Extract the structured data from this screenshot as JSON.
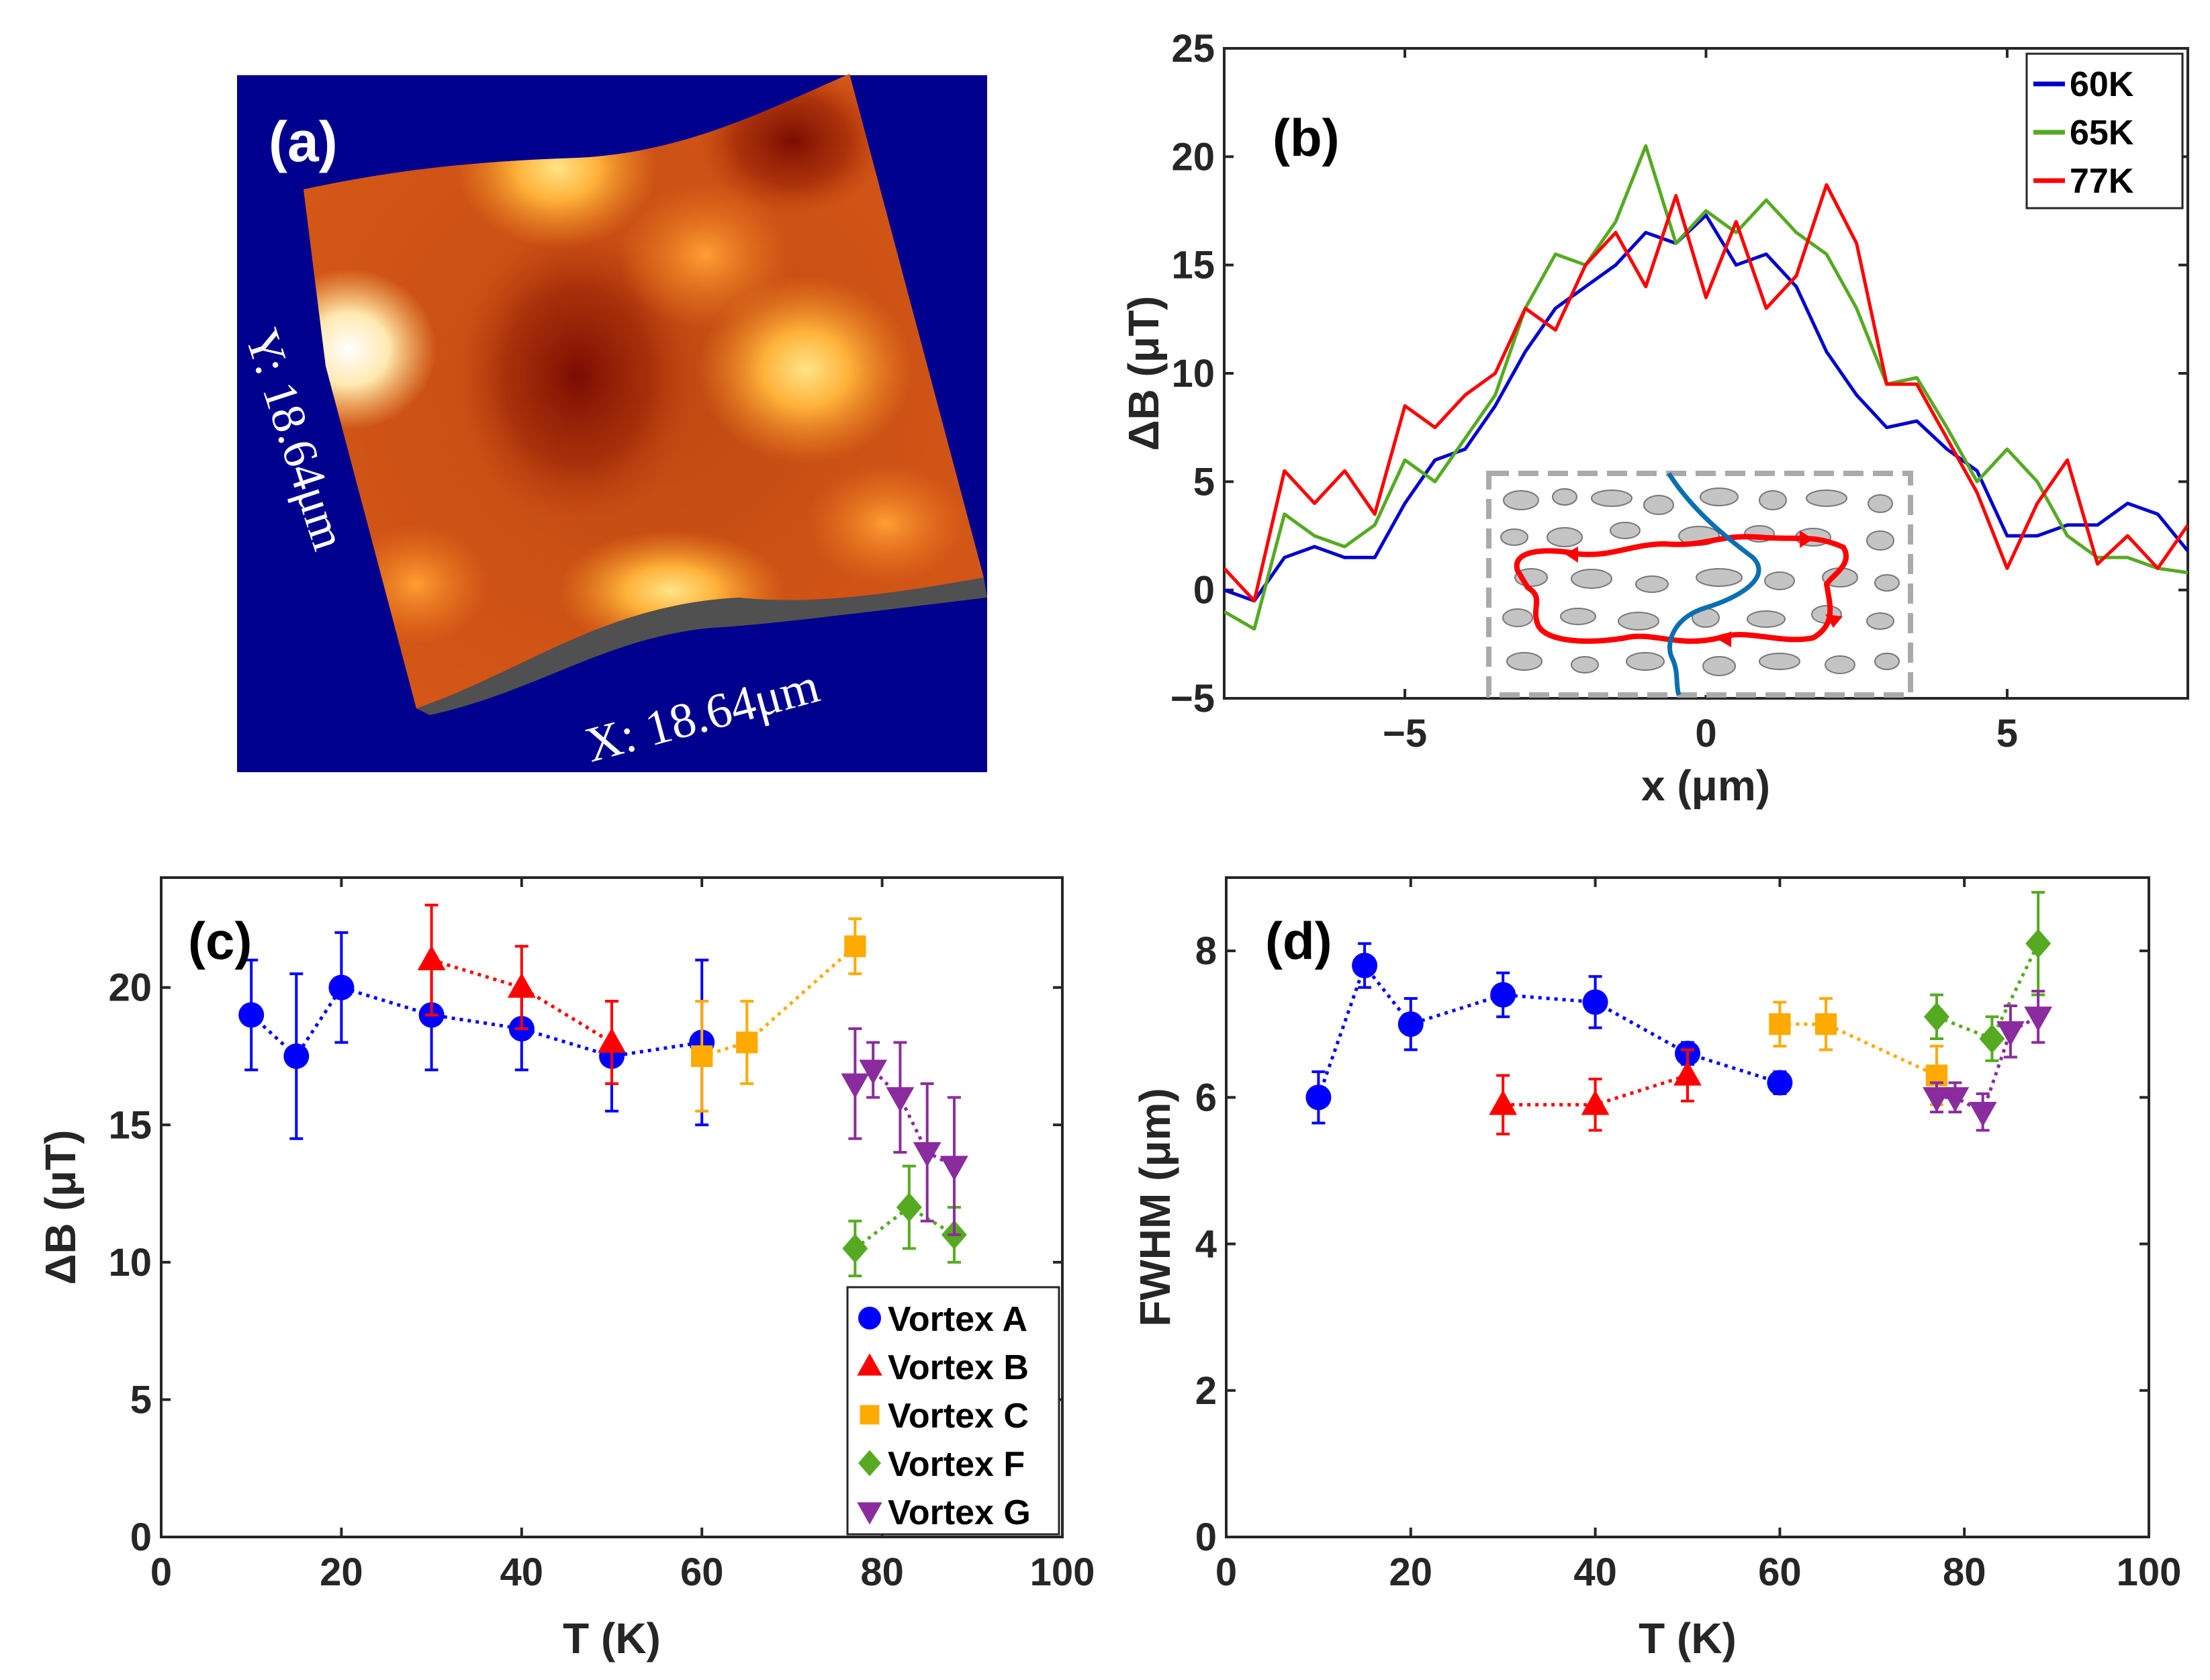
{
  "panel_a": {
    "tag": "(a)",
    "x_label": "X: 18.64μm",
    "y_label": "Y: 18.64μm"
  },
  "chart_data": [
    {
      "type": "line",
      "tag": "(b)",
      "title": "",
      "xlabel": "x (μm)",
      "ylabel": "ΔB (μT)",
      "xlim": [
        -8,
        8
      ],
      "ylim": [
        -5,
        25
      ],
      "xticks": [
        -5,
        0,
        5
      ],
      "yticks": [
        -5,
        0,
        5,
        10,
        15,
        20,
        25
      ],
      "legend": "top-right",
      "series": [
        {
          "name": "60K",
          "color": "#0000cc",
          "x": [
            -8,
            -7.5,
            -7,
            -6.5,
            -6,
            -5.5,
            -5,
            -4.5,
            -4,
            -3.5,
            -3,
            -2.5,
            -2,
            -1.5,
            -1,
            -0.5,
            0,
            0.5,
            1,
            1.5,
            2,
            2.5,
            3,
            3.5,
            4,
            4.5,
            5,
            5.5,
            6,
            6.5,
            7,
            7.5,
            8
          ],
          "y": [
            0,
            -0.5,
            1.5,
            2,
            1.5,
            1.5,
            4,
            6,
            6.5,
            8.5,
            11,
            13,
            14,
            15,
            16.5,
            16,
            17.3,
            15,
            15.5,
            14,
            11,
            9,
            7.5,
            7.8,
            6.5,
            5.5,
            2.5,
            2.5,
            3,
            3,
            4,
            3.5,
            1.8
          ]
        },
        {
          "name": "65K",
          "color": "#55aa22",
          "x": [
            -8,
            -7.5,
            -7,
            -6.5,
            -6,
            -5.5,
            -5,
            -4.5,
            -4,
            -3.5,
            -3,
            -2.5,
            -2,
            -1.5,
            -1,
            -0.5,
            0,
            0.5,
            1,
            1.5,
            2,
            2.5,
            3,
            3.5,
            4,
            4.5,
            5,
            5.5,
            6,
            6.5,
            7,
            7.5,
            8
          ],
          "y": [
            -1,
            -1.8,
            3.5,
            2.5,
            2,
            3,
            6,
            5,
            7,
            9,
            13,
            15.5,
            15,
            17,
            20.5,
            16,
            17.5,
            16.5,
            18,
            16.5,
            15.5,
            13,
            9.5,
            9.8,
            7.5,
            5,
            6.5,
            5,
            2.5,
            1.5,
            1.5,
            1,
            0.8
          ]
        },
        {
          "name": "77K",
          "color": "#ff0000",
          "x": [
            -8,
            -7.5,
            -7,
            -6.5,
            -6,
            -5.5,
            -5,
            -4.5,
            -4,
            -3.5,
            -3,
            -2.5,
            -2,
            -1.5,
            -1,
            -0.5,
            0,
            0.5,
            1,
            1.5,
            2,
            2.5,
            3,
            3.5,
            4,
            4.5,
            5,
            5.5,
            6,
            6.5,
            7,
            7.5,
            8
          ],
          "y": [
            1,
            -0.5,
            5.5,
            4,
            5.5,
            3.5,
            8.5,
            7.5,
            9,
            10,
            13,
            12,
            15,
            16.5,
            14,
            18.2,
            13.5,
            17,
            13,
            14.5,
            18.7,
            16,
            9.5,
            9.5,
            7,
            4.5,
            1,
            4,
            6,
            1.2,
            2.5,
            1,
            3
          ]
        }
      ]
    },
    {
      "type": "scatter",
      "tag": "(c)",
      "title": "",
      "xlabel": "T (K)",
      "ylabel": "ΔB (μT)",
      "xlim": [
        0,
        100
      ],
      "ylim": [
        0,
        24
      ],
      "xticks": [
        0,
        20,
        40,
        60,
        80,
        100
      ],
      "yticks": [
        0,
        5,
        10,
        15,
        20
      ],
      "legend": "bottom-right",
      "series": [
        {
          "name": "Vortex A",
          "marker": "circle",
          "color": "#0000ff",
          "x": [
            10,
            15,
            20,
            30,
            40,
            50,
            60
          ],
          "y": [
            19,
            17.5,
            20,
            19,
            18.5,
            17.5,
            18
          ],
          "err": [
            2,
            3,
            2,
            2,
            1.5,
            2,
            3
          ]
        },
        {
          "name": "Vortex B",
          "marker": "triangle-up",
          "color": "#ff0000",
          "x": [
            30,
            40,
            50
          ],
          "y": [
            21,
            20,
            18
          ],
          "err": [
            2,
            1.5,
            1.5
          ]
        },
        {
          "name": "Vortex C",
          "marker": "square",
          "color": "#ffaa00",
          "x": [
            60,
            65,
            77
          ],
          "y": [
            17.5,
            18,
            21.5
          ],
          "err": [
            2,
            1.5,
            1
          ]
        },
        {
          "name": "Vortex F",
          "marker": "diamond",
          "color": "#55aa22",
          "x": [
            77,
            83,
            88
          ],
          "y": [
            10.5,
            12,
            11
          ],
          "err": [
            1,
            1.5,
            1
          ]
        },
        {
          "name": "Vortex G",
          "marker": "triangle-down",
          "color": "#8a2c9e",
          "x": [
            77,
            79,
            82,
            85,
            88
          ],
          "y": [
            16.5,
            17,
            16,
            14,
            13.5
          ],
          "err": [
            2,
            1,
            2,
            2.5,
            2.5
          ]
        }
      ]
    },
    {
      "type": "scatter",
      "tag": "(d)",
      "title": "",
      "xlabel": "T (K)",
      "ylabel": "FWHM (μm)",
      "xlim": [
        0,
        100
      ],
      "ylim": [
        0,
        9
      ],
      "xticks": [
        0,
        20,
        40,
        60,
        80,
        100
      ],
      "yticks": [
        0,
        2,
        4,
        6,
        8
      ],
      "series": [
        {
          "name": "Vortex A",
          "marker": "circle",
          "color": "#0000ff",
          "x": [
            10,
            15,
            20,
            30,
            40,
            50,
            60
          ],
          "y": [
            6,
            7.8,
            7,
            7.4,
            7.3,
            6.6,
            6.2
          ],
          "err": [
            0.35,
            0.3,
            0.35,
            0.3,
            0.35,
            0.15,
            0.15
          ]
        },
        {
          "name": "Vortex B",
          "marker": "triangle-up",
          "color": "#ff0000",
          "x": [
            30,
            40,
            50
          ],
          "y": [
            5.9,
            5.9,
            6.3
          ],
          "err": [
            0.4,
            0.35,
            0.35
          ]
        },
        {
          "name": "Vortex C",
          "marker": "square",
          "color": "#ffaa00",
          "x": [
            60,
            65,
            77
          ],
          "y": [
            7,
            7,
            6.3
          ],
          "err": [
            0.3,
            0.35,
            0.4
          ]
        },
        {
          "name": "Vortex F",
          "marker": "diamond",
          "color": "#55aa22",
          "x": [
            77,
            83,
            88
          ],
          "y": [
            7.1,
            6.8,
            8.1
          ],
          "err": [
            0.3,
            0.3,
            0.7
          ]
        },
        {
          "name": "Vortex G",
          "marker": "triangle-down",
          "color": "#8a2c9e",
          "x": [
            77,
            79,
            82,
            85,
            88
          ],
          "y": [
            6,
            6,
            5.8,
            6.9,
            7.1
          ],
          "err": [
            0.2,
            0.2,
            0.25,
            0.35,
            0.35
          ]
        }
      ]
    }
  ]
}
